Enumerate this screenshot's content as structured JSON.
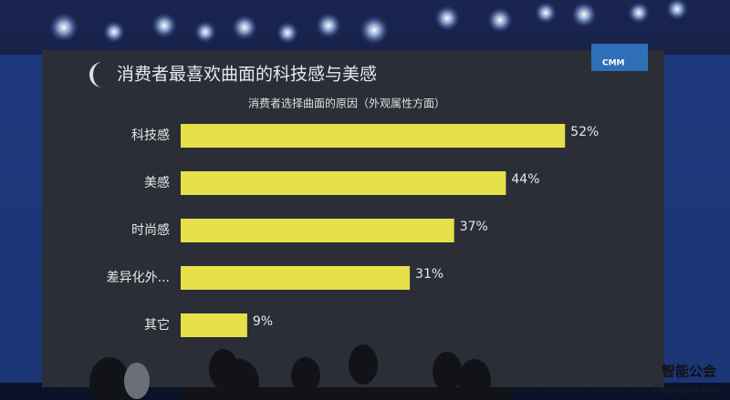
{
  "chart_data": {
    "type": "hbar",
    "title": "消费者最喜欢曲面的科技感与美感",
    "subtitle": "消费者选择曲面的原因（外观属性方面）",
    "categories": [
      "科技感",
      "美感",
      "时尚感",
      "差异化外...",
      "其它"
    ],
    "values": [
      52,
      44,
      37,
      31,
      9
    ],
    "value_labels": [
      "52%",
      "44%",
      "37%",
      "31%",
      "9%"
    ],
    "color": "#e6e04a"
  },
  "logo": "CMM",
  "watermark": {
    "brand": "智能公会",
    "site": "ZNgonghui.com"
  }
}
